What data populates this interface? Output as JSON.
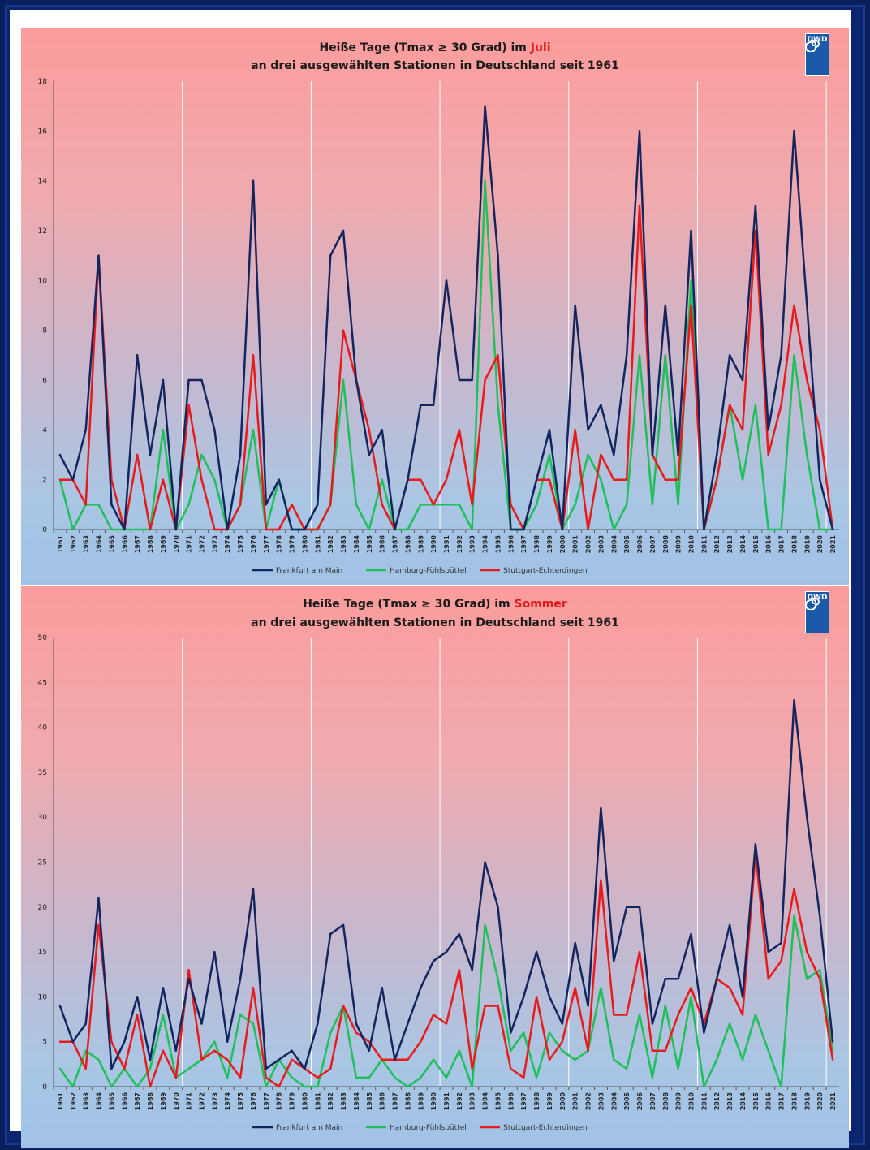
{
  "panels": [
    {
      "title_prefix": "Heiße Tage (Tmax ≥ 30 Grad) im ",
      "title_highlight": "Juli",
      "subtitle": "an drei ausgewählten Stationen in Deutschland seit 1961",
      "logo": "DWD"
    },
    {
      "title_prefix": "Heiße Tage (Tmax ≥ 30 Grad) im ",
      "title_highlight": "Sommer",
      "subtitle": "an drei ausgewählten Stationen in Deutschland seit 1961",
      "logo": "DWD"
    }
  ],
  "colors": {
    "frankfurt": "#13255e",
    "hamburg": "#1fbf5a",
    "stuttgart": "#e81a1a",
    "highlight": "#e21a1a",
    "frame": "#0b2470"
  },
  "chart_data": [
    {
      "type": "line",
      "title": "Heiße Tage (Tmax ≥ 30 Grad) im Juli",
      "subtitle": "an drei ausgewählten Stationen in Deutschland seit 1961",
      "x": [
        "1961",
        "1962",
        "1963",
        "1964",
        "1965",
        "1966",
        "1967",
        "1968",
        "1969",
        "1970",
        "1971",
        "1972",
        "1973",
        "1974",
        "1975",
        "1976",
        "1977",
        "1978",
        "1979",
        "1980",
        "1981",
        "1982",
        "1983",
        "1984",
        "1985",
        "1986",
        "1987",
        "1988",
        "1989",
        "1990",
        "1991",
        "1992",
        "1993",
        "1994",
        "1995",
        "1996",
        "1997",
        "1998",
        "1999",
        "2000",
        "2001",
        "2002",
        "2003",
        "2004",
        "2005",
        "2006",
        "2007",
        "2008",
        "2009",
        "2010",
        "2011",
        "2012",
        "2013",
        "2014",
        "2015",
        "2016",
        "2017",
        "2018",
        "2019",
        "2020",
        "2021"
      ],
      "ylim": [
        0,
        18
      ],
      "yticks": [
        0,
        2,
        4,
        6,
        8,
        10,
        12,
        14,
        16,
        18
      ],
      "legend_position": "bottom",
      "grid": "vertical every 10 years",
      "series": [
        {
          "name": "Frankfurt am Main",
          "color": "#13255e",
          "values": [
            3,
            2,
            4,
            11,
            1,
            0,
            7,
            3,
            6,
            0,
            6,
            6,
            4,
            0,
            3,
            14,
            1,
            2,
            0,
            0,
            1,
            11,
            12,
            6,
            3,
            4,
            0,
            2,
            5,
            5,
            10,
            6,
            6,
            17,
            11,
            0,
            0,
            2,
            4,
            0,
            9,
            4,
            5,
            3,
            7,
            16,
            3,
            9,
            3,
            12,
            0,
            3,
            7,
            6,
            13,
            4,
            7,
            16,
            9,
            2,
            0
          ]
        },
        {
          "name": "Hamburg-Fühlsbüttel",
          "color": "#1fbf5a",
          "values": [
            2,
            0,
            1,
            1,
            0,
            0,
            0,
            0,
            4,
            0,
            1,
            3,
            2,
            0,
            1,
            4,
            0,
            2,
            0,
            0,
            0,
            1,
            6,
            1,
            0,
            2,
            0,
            0,
            1,
            1,
            1,
            1,
            0,
            14,
            5,
            0,
            0,
            1,
            3,
            0,
            1,
            3,
            2,
            0,
            1,
            7,
            1,
            7,
            1,
            10,
            0,
            2,
            5,
            2,
            5,
            0,
            0,
            7,
            3,
            0,
            0
          ]
        },
        {
          "name": "Stuttgart-Echterdingen",
          "color": "#e81a1a",
          "values": [
            2,
            2,
            1,
            11,
            2,
            0,
            3,
            0,
            2,
            0,
            5,
            2,
            0,
            0,
            1,
            7,
            0,
            0,
            1,
            0,
            0,
            1,
            8,
            6,
            4,
            1,
            0,
            2,
            2,
            1,
            2,
            4,
            1,
            6,
            7,
            1,
            0,
            2,
            2,
            0,
            4,
            0,
            3,
            2,
            2,
            13,
            3,
            2,
            2,
            9,
            0,
            2,
            5,
            4,
            12,
            3,
            5,
            9,
            6,
            4,
            0
          ]
        }
      ]
    },
    {
      "type": "line",
      "title": "Heiße Tage (Tmax ≥ 30 Grad) im Sommer",
      "subtitle": "an drei ausgewählten Stationen in Deutschland seit 1961",
      "x": [
        "1961",
        "1962",
        "1963",
        "1964",
        "1965",
        "1966",
        "1967",
        "1968",
        "1969",
        "1970",
        "1971",
        "1972",
        "1973",
        "1974",
        "1975",
        "1976",
        "1977",
        "1978",
        "1979",
        "1980",
        "1981",
        "1982",
        "1983",
        "1984",
        "1985",
        "1986",
        "1987",
        "1988",
        "1989",
        "1990",
        "1991",
        "1992",
        "1993",
        "1994",
        "1995",
        "1996",
        "1997",
        "1998",
        "1999",
        "2000",
        "2001",
        "2002",
        "2003",
        "2004",
        "2005",
        "2006",
        "2007",
        "2008",
        "2009",
        "2010",
        "2011",
        "2012",
        "2013",
        "2014",
        "2015",
        "2016",
        "2017",
        "2018",
        "2019",
        "2020",
        "2021"
      ],
      "ylim": [
        0,
        50
      ],
      "yticks": [
        0,
        5,
        10,
        15,
        20,
        25,
        30,
        35,
        40,
        45,
        50
      ],
      "legend_position": "bottom",
      "grid": "vertical every 10 years",
      "series": [
        {
          "name": "Frankfurt am Main",
          "color": "#13255e",
          "values": [
            9,
            5,
            7,
            21,
            2,
            5,
            10,
            3,
            11,
            4,
            12,
            7,
            15,
            5,
            12,
            22,
            2,
            3,
            4,
            2,
            7,
            17,
            18,
            7,
            4,
            11,
            3,
            7,
            11,
            14,
            15,
            17,
            13,
            25,
            20,
            6,
            10,
            15,
            10,
            7,
            16,
            9,
            31,
            14,
            20,
            20,
            7,
            12,
            12,
            17,
            6,
            12,
            18,
            10,
            27,
            15,
            16,
            43,
            30,
            19,
            5
          ]
        },
        {
          "name": "Hamburg-Fühlsbüttel",
          "color": "#1fbf5a",
          "values": [
            2,
            0,
            4,
            3,
            0,
            2,
            0,
            2,
            8,
            1,
            2,
            3,
            5,
            1,
            8,
            7,
            0,
            3,
            1,
            0,
            0,
            6,
            9,
            1,
            1,
            3,
            1,
            0,
            1,
            3,
            1,
            4,
            0,
            18,
            12,
            4,
            6,
            1,
            6,
            4,
            3,
            4,
            11,
            3,
            2,
            8,
            1,
            9,
            2,
            10,
            0,
            3,
            7,
            3,
            8,
            4,
            0,
            19,
            12,
            13,
            4
          ]
        },
        {
          "name": "Stuttgart-Echterdingen",
          "color": "#e81a1a",
          "values": [
            5,
            5,
            2,
            18,
            5,
            2,
            8,
            0,
            4,
            1,
            13,
            3,
            4,
            3,
            1,
            11,
            1,
            0,
            3,
            2,
            1,
            2,
            9,
            6,
            5,
            3,
            3,
            3,
            5,
            8,
            7,
            13,
            2,
            9,
            9,
            2,
            1,
            10,
            3,
            5,
            11,
            4,
            23,
            8,
            8,
            15,
            4,
            4,
            8,
            11,
            7,
            12,
            11,
            8,
            26,
            12,
            14,
            22,
            15,
            12,
            3
          ]
        }
      ]
    }
  ]
}
